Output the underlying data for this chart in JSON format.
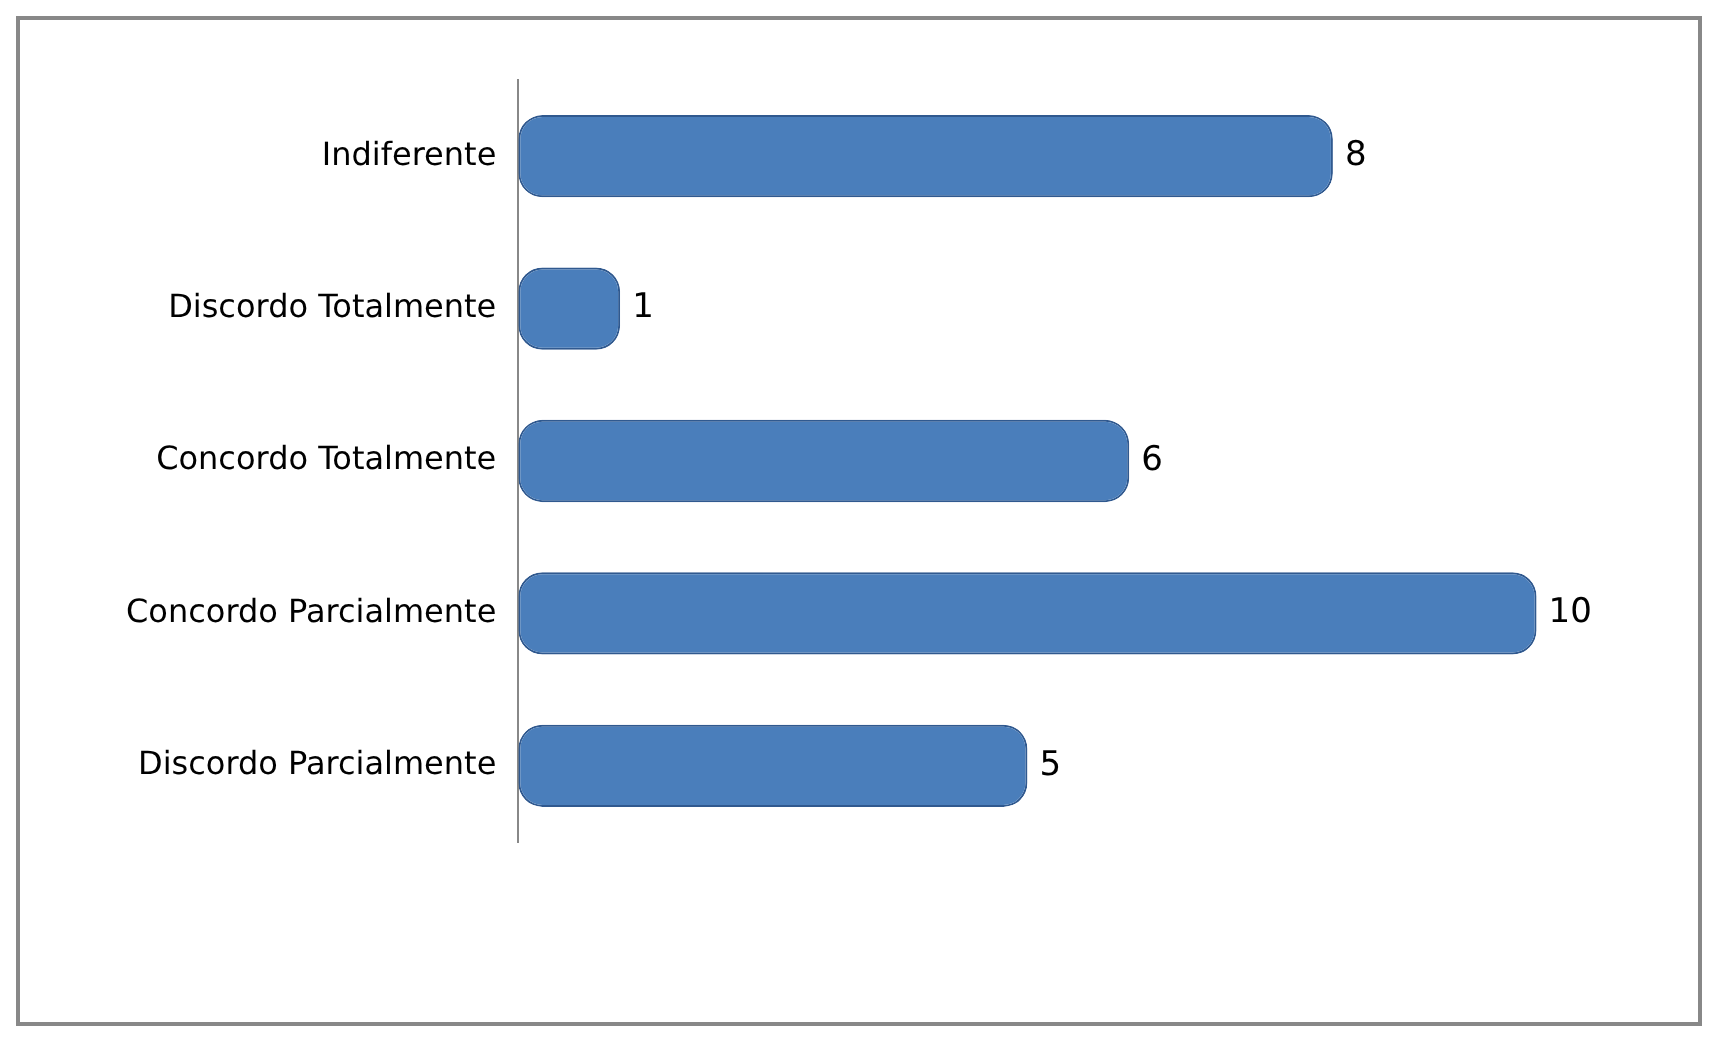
{
  "chart_data": {
    "type": "bar",
    "orientation": "horizontal",
    "categories": [
      "Indiferente",
      "Discordo Totalmente",
      "Concordo Totalmente",
      "Concordo Parcialmente",
      "Discordo Parcialmente"
    ],
    "values": [
      8,
      1,
      6,
      10,
      5
    ],
    "color": "#4a7ebb",
    "data_labels": true
  }
}
